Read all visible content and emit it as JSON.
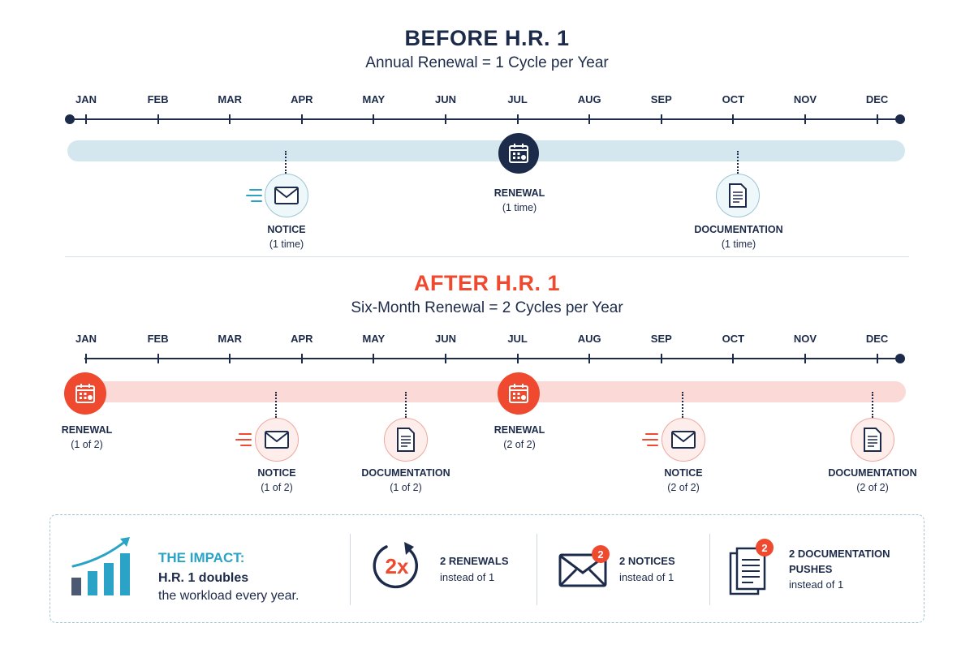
{
  "before": {
    "title": "BEFORE H.R. 1",
    "subtitle": "Annual Renewal = 1 Cycle per Year",
    "events": {
      "notice": {
        "label": "NOTICE",
        "sub": "(1 time)",
        "month": "APR"
      },
      "renewal": {
        "label": "RENEWAL",
        "sub": "(1 time)",
        "month": "JUL"
      },
      "documentation": {
        "label": "DOCUMENTATION",
        "sub": "(1 time)",
        "month": "OCT"
      }
    }
  },
  "after": {
    "title": "AFTER H.R. 1",
    "subtitle": "Six-Month Renewal = 2 Cycles per Year",
    "events": {
      "renewal1": {
        "label": "RENEWAL",
        "sub": "(1 of 2)",
        "month": "JAN"
      },
      "notice1": {
        "label": "NOTICE",
        "sub": "(1 of 2)",
        "month": "MAR"
      },
      "documentation1": {
        "label": "DOCUMENTATION",
        "sub": "(1 of 2)",
        "month": "MAY"
      },
      "renewal2": {
        "label": "RENEWAL",
        "sub": "(2 of 2)",
        "month": "JUL"
      },
      "notice2": {
        "label": "NOTICE",
        "sub": "(2 of 2)",
        "month": "SEP"
      },
      "documentation2": {
        "label": "DOCUMENTATION",
        "sub": "(2 of 2)",
        "month": "DEC"
      }
    }
  },
  "months": [
    "JAN",
    "FEB",
    "MAR",
    "APR",
    "MAY",
    "JUN",
    "JUL",
    "AUG",
    "SEP",
    "OCT",
    "NOV",
    "DEC"
  ],
  "impact": {
    "title": "THE IMPACT:",
    "line1": "H.R. 1 doubles",
    "line2": "the workload every year.",
    "multiplier": "2x",
    "renewals": {
      "title": "2 RENEWALS",
      "sub": "instead of 1"
    },
    "notices": {
      "title": "2 NOTICES",
      "sub": "instead of 1",
      "badge": "2"
    },
    "docs": {
      "title1": "2 DOCUMENTATION",
      "title2": "PUSHES",
      "sub": "instead of 1",
      "badge": "2"
    }
  },
  "colors": {
    "navy": "#1d2b4a",
    "red": "#ef4a2f",
    "teal": "#2aa3c6",
    "blue_band": "#d4e7ef",
    "red_band": "#fbd9d6"
  },
  "icons": {
    "calendar": "calendar-icon",
    "envelope": "envelope-icon",
    "document": "document-icon",
    "growth": "growth-chart-icon",
    "cycle": "cycle-arrow-icon"
  }
}
